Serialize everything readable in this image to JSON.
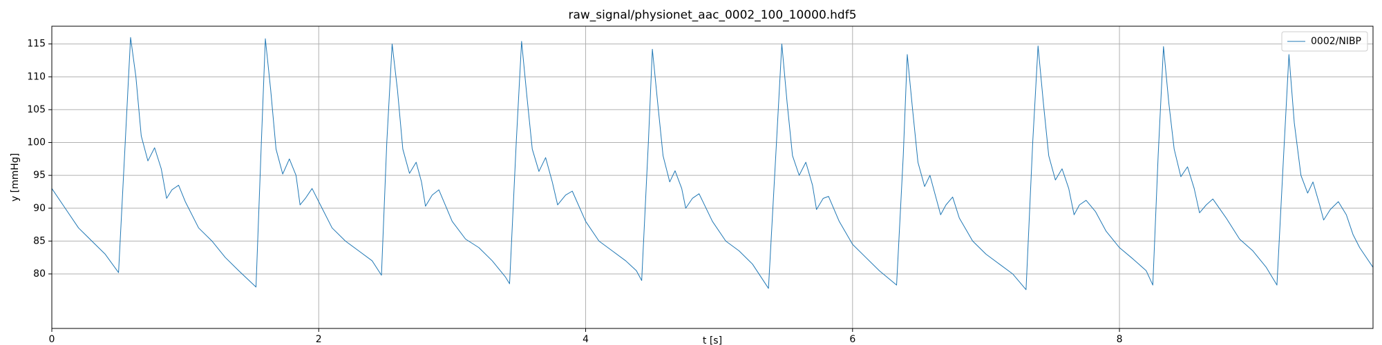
{
  "chart_data": {
    "type": "line",
    "title": "raw_signal/physionet_aac_0002_100_10000.hdf5",
    "xlabel": "t [s]",
    "ylabel": "y [mmHg]",
    "x": [
      0,
      0.1,
      0.2,
      0.3,
      0.4,
      0.5,
      0.55,
      0.59,
      0.63,
      0.67,
      0.72,
      0.77,
      0.82,
      0.86,
      0.9,
      0.95,
      1.0,
      1.1,
      1.2,
      1.3,
      1.4,
      1.53,
      1.57,
      1.6,
      1.64,
      1.68,
      1.73,
      1.78,
      1.83,
      1.86,
      1.9,
      1.95,
      2.0,
      2.1,
      2.2,
      2.3,
      2.4,
      2.47,
      2.51,
      2.55,
      2.59,
      2.63,
      2.68,
      2.73,
      2.77,
      2.8,
      2.85,
      2.9,
      3.0,
      3.1,
      3.2,
      3.3,
      3.4,
      3.43,
      3.48,
      3.52,
      3.56,
      3.6,
      3.65,
      3.7,
      3.75,
      3.79,
      3.85,
      3.9,
      4.0,
      4.1,
      4.2,
      4.3,
      4.38,
      4.42,
      4.47,
      4.5,
      4.54,
      4.58,
      4.63,
      4.67,
      4.72,
      4.75,
      4.8,
      4.85,
      4.95,
      5.05,
      5.15,
      5.25,
      5.37,
      5.43,
      5.47,
      5.51,
      5.55,
      5.6,
      5.65,
      5.7,
      5.73,
      5.78,
      5.82,
      5.9,
      6.0,
      6.1,
      6.2,
      6.33,
      6.38,
      6.41,
      6.45,
      6.49,
      6.54,
      6.58,
      6.62,
      6.66,
      6.7,
      6.75,
      6.8,
      6.9,
      7.0,
      7.1,
      7.2,
      7.3,
      7.35,
      7.39,
      7.43,
      7.47,
      7.52,
      7.57,
      7.62,
      7.66,
      7.7,
      7.75,
      7.82,
      7.9,
      8.0,
      8.1,
      8.2,
      8.25,
      8.29,
      8.33,
      8.37,
      8.41,
      8.46,
      8.51,
      8.56,
      8.6,
      8.65,
      8.7,
      8.8,
      8.9,
      9.0,
      9.1,
      9.18,
      9.23,
      9.27,
      9.31,
      9.36,
      9.41,
      9.45,
      9.5,
      9.53,
      9.58,
      9.64,
      9.7,
      9.75,
      9.8,
      9.9
    ],
    "series": [
      {
        "name": "0002/NIBP",
        "color": "#1f77b4",
        "values": [
          93,
          90,
          87,
          85,
          83,
          80.2,
          100,
          116,
          110,
          101,
          97.2,
          99.2,
          96,
          91.5,
          92.8,
          93.5,
          91,
          87,
          85,
          82.5,
          80.5,
          78,
          100,
          115.8,
          108,
          99,
          95.2,
          97.5,
          95,
          90.5,
          91.5,
          93,
          91,
          87,
          85,
          83.5,
          82,
          79.8,
          100,
          115,
          108,
          99,
          95.3,
          97,
          94,
          90.3,
          92,
          92.8,
          88,
          85.3,
          84,
          82,
          79.5,
          78.5,
          100,
          115.4,
          107,
          99,
          95.6,
          97.7,
          94,
          90.5,
          92,
          92.6,
          88,
          85,
          83.5,
          82,
          80.5,
          79,
          100,
          114.2,
          106,
          98,
          94,
          95.7,
          93,
          90,
          91.5,
          92.2,
          88,
          85,
          83.5,
          81.5,
          77.8,
          100,
          115,
          106,
          98,
          95,
          97,
          93.5,
          89.8,
          91.5,
          91.8,
          88,
          84.5,
          82.5,
          80.5,
          78.3,
          98,
          113.4,
          105,
          97,
          93.3,
          95,
          92,
          89,
          90.5,
          91.7,
          88.5,
          85,
          83,
          81.5,
          80,
          77.6,
          100,
          114.7,
          106,
          98,
          94.3,
          96,
          93,
          89,
          90.5,
          91.2,
          89.5,
          86.5,
          84,
          82.3,
          80.5,
          78.3,
          98,
          114.6,
          106,
          99,
          94.8,
          96.3,
          93,
          89.3,
          90.5,
          91.4,
          88.5,
          85.3,
          83.5,
          81,
          78.3,
          98,
          113.4,
          103,
          95,
          92.3,
          94,
          90.5,
          88.2,
          89.8,
          91,
          89,
          86,
          84,
          81
        ]
      }
    ],
    "xlim": [
      0,
      9.9
    ],
    "ylim": [
      71.7,
      117.7
    ],
    "xticks": [
      0,
      2,
      4,
      6,
      8
    ],
    "yticks": [
      80,
      85,
      90,
      95,
      100,
      105,
      110,
      115
    ],
    "grid": true,
    "legend": "upper right"
  }
}
